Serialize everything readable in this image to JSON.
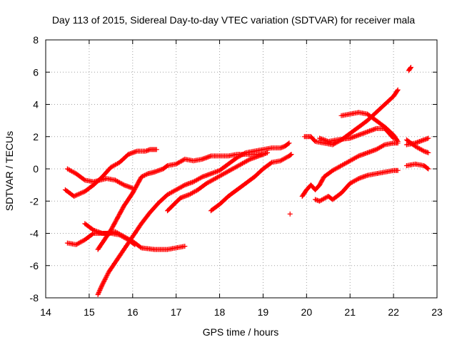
{
  "chart_data": {
    "type": "scatter",
    "title": "Day 113 of 2015, Sidereal Day-to-day VTEC variation (SDTVAR) for receiver mala",
    "xlabel": "GPS time / hours",
    "ylabel": "SDTVAR / TECUs",
    "xlim": [
      14,
      23
    ],
    "ylim": [
      -8,
      8
    ],
    "xticks": [
      14,
      15,
      16,
      17,
      18,
      19,
      20,
      21,
      22,
      23
    ],
    "yticks": [
      -8,
      -6,
      -4,
      -2,
      0,
      2,
      4,
      6,
      8
    ],
    "grid": true,
    "legend": "none",
    "marker": "plus",
    "series_color": "#ff0000",
    "tracks": [
      [
        [
          14.5,
          0.0
        ],
        [
          14.7,
          -0.3
        ],
        [
          14.9,
          -0.7
        ],
        [
          15.1,
          -0.8
        ],
        [
          15.4,
          -0.6
        ],
        [
          15.6,
          -0.7
        ],
        [
          15.8,
          -1.0
        ],
        [
          16.0,
          -1.2
        ]
      ],
      [
        [
          14.45,
          -1.3
        ],
        [
          14.65,
          -1.7
        ],
        [
          14.9,
          -1.4
        ],
        [
          15.1,
          -1.0
        ],
        [
          15.3,
          -0.5
        ],
        [
          15.5,
          0.1
        ],
        [
          15.7,
          0.4
        ],
        [
          15.9,
          0.9
        ],
        [
          16.1,
          1.1
        ],
        [
          16.3,
          1.1
        ],
        [
          16.4,
          1.2
        ],
        [
          16.55,
          1.2
        ]
      ],
      [
        [
          14.5,
          -4.6
        ],
        [
          14.7,
          -4.7
        ],
        [
          14.9,
          -4.4
        ],
        [
          15.1,
          -4.0
        ],
        [
          15.4,
          -4.0
        ],
        [
          15.6,
          -3.9
        ],
        [
          15.8,
          -4.2
        ],
        [
          16.0,
          -4.5
        ],
        [
          16.2,
          -4.9
        ],
        [
          16.5,
          -5.0
        ],
        [
          16.8,
          -5.0
        ],
        [
          17.0,
          -4.9
        ],
        [
          17.2,
          -4.8
        ]
      ],
      [
        [
          14.9,
          -3.4
        ],
        [
          15.1,
          -3.8
        ],
        [
          15.3,
          -4.0
        ],
        [
          15.5,
          -4.0
        ],
        [
          15.7,
          -4.1
        ],
        [
          15.9,
          -4.4
        ],
        [
          16.05,
          -4.7
        ]
      ],
      [
        [
          15.2,
          -7.8
        ],
        [
          15.3,
          -7.2
        ],
        [
          15.45,
          -6.4
        ],
        [
          15.6,
          -5.8
        ],
        [
          15.8,
          -5.0
        ],
        [
          16.0,
          -4.2
        ],
        [
          16.2,
          -3.4
        ],
        [
          16.4,
          -2.7
        ],
        [
          16.6,
          -2.1
        ],
        [
          16.8,
          -1.6
        ],
        [
          17.0,
          -1.3
        ],
        [
          17.2,
          -1.0
        ],
        [
          17.4,
          -0.8
        ],
        [
          17.6,
          -0.5
        ],
        [
          17.8,
          -0.3
        ],
        [
          18.0,
          -0.1
        ],
        [
          18.2,
          0.3
        ],
        [
          18.4,
          0.7
        ],
        [
          18.6,
          1.0
        ],
        [
          18.8,
          1.1
        ],
        [
          19.0,
          1.2
        ],
        [
          19.2,
          1.3
        ],
        [
          19.4,
          1.3
        ],
        [
          19.5,
          1.4
        ],
        [
          19.6,
          1.6
        ]
      ],
      [
        [
          15.2,
          -5.0
        ],
        [
          15.35,
          -4.4
        ],
        [
          15.5,
          -3.8
        ],
        [
          15.6,
          -3.3
        ],
        [
          15.7,
          -2.8
        ],
        [
          15.8,
          -2.3
        ],
        [
          15.9,
          -1.9
        ],
        [
          16.0,
          -1.5
        ],
        [
          16.1,
          -1.0
        ],
        [
          16.2,
          -0.5
        ],
        [
          16.35,
          -0.3
        ],
        [
          16.5,
          -0.2
        ],
        [
          16.7,
          0.0
        ],
        [
          16.8,
          0.2
        ],
        [
          17.0,
          0.3
        ],
        [
          17.2,
          0.6
        ],
        [
          17.4,
          0.5
        ],
        [
          17.6,
          0.6
        ],
        [
          17.8,
          0.8
        ],
        [
          18.0,
          0.8
        ],
        [
          18.2,
          0.8
        ],
        [
          18.4,
          0.9
        ],
        [
          18.6,
          0.9
        ],
        [
          18.8,
          0.9
        ],
        [
          19.0,
          0.9
        ]
      ],
      [
        [
          16.8,
          -2.6
        ],
        [
          16.95,
          -2.2
        ],
        [
          17.1,
          -1.8
        ],
        [
          17.3,
          -1.6
        ],
        [
          17.5,
          -1.3
        ],
        [
          17.7,
          -0.9
        ],
        [
          17.9,
          -0.6
        ],
        [
          18.1,
          -0.3
        ],
        [
          18.3,
          0.0
        ],
        [
          18.5,
          0.3
        ],
        [
          18.7,
          0.6
        ],
        [
          18.9,
          0.8
        ],
        [
          19.1,
          1.0
        ]
      ],
      [
        [
          17.8,
          -2.6
        ],
        [
          18.0,
          -2.2
        ],
        [
          18.2,
          -1.7
        ],
        [
          18.4,
          -1.3
        ],
        [
          18.6,
          -0.9
        ],
        [
          18.8,
          -0.5
        ],
        [
          19.0,
          0.0
        ],
        [
          19.2,
          0.4
        ],
        [
          19.4,
          0.5
        ],
        [
          19.6,
          0.8
        ],
        [
          19.65,
          0.9
        ]
      ],
      [
        [
          19.62,
          -2.8
        ]
      ],
      [
        [
          19.9,
          -1.7
        ],
        [
          20.0,
          -1.3
        ],
        [
          20.1,
          -1.0
        ],
        [
          20.2,
          -1.3
        ],
        [
          20.3,
          -1.0
        ],
        [
          20.4,
          -0.5
        ],
        [
          20.6,
          -0.1
        ],
        [
          20.8,
          0.2
        ],
        [
          21.0,
          0.5
        ],
        [
          21.2,
          0.8
        ],
        [
          21.4,
          1.0
        ],
        [
          21.6,
          1.2
        ],
        [
          21.8,
          1.5
        ],
        [
          22.0,
          1.6
        ],
        [
          22.1,
          1.6
        ]
      ],
      [
        [
          20.2,
          -1.9
        ],
        [
          20.3,
          -2.0
        ],
        [
          20.5,
          -1.7
        ],
        [
          20.6,
          -1.9
        ],
        [
          20.8,
          -1.5
        ],
        [
          21.0,
          -0.9
        ],
        [
          21.2,
          -0.6
        ],
        [
          21.4,
          -0.4
        ],
        [
          21.6,
          -0.3
        ],
        [
          21.8,
          -0.2
        ],
        [
          22.0,
          -0.1
        ],
        [
          22.1,
          -0.1
        ]
      ],
      [
        [
          19.95,
          2.0
        ],
        [
          20.1,
          2.0
        ],
        [
          20.2,
          1.7
        ],
        [
          20.4,
          1.6
        ],
        [
          20.6,
          1.5
        ],
        [
          20.8,
          1.8
        ],
        [
          21.0,
          2.2
        ],
        [
          21.2,
          2.6
        ],
        [
          21.4,
          3.0
        ],
        [
          21.6,
          3.5
        ],
        [
          21.8,
          4.0
        ],
        [
          22.0,
          4.5
        ],
        [
          22.1,
          4.9
        ]
      ],
      [
        [
          20.8,
          3.3
        ],
        [
          21.0,
          3.4
        ],
        [
          21.2,
          3.5
        ],
        [
          21.4,
          3.4
        ],
        [
          21.6,
          3.0
        ],
        [
          21.8,
          2.6
        ],
        [
          22.0,
          2.1
        ],
        [
          22.1,
          1.7
        ]
      ],
      [
        [
          20.3,
          1.9
        ],
        [
          20.5,
          1.7
        ],
        [
          20.7,
          1.8
        ],
        [
          21.0,
          1.9
        ],
        [
          21.2,
          2.1
        ],
        [
          21.4,
          2.3
        ],
        [
          21.6,
          2.5
        ],
        [
          21.8,
          2.5
        ],
        [
          22.0,
          1.9
        ]
      ],
      [
        [
          22.3,
          1.5
        ],
        [
          22.5,
          1.6
        ],
        [
          22.7,
          1.8
        ],
        [
          22.8,
          1.9
        ]
      ],
      [
        [
          22.3,
          1.8
        ],
        [
          22.5,
          1.4
        ],
        [
          22.7,
          1.1
        ],
        [
          22.8,
          1.0
        ]
      ],
      [
        [
          22.3,
          0.2
        ],
        [
          22.5,
          0.3
        ],
        [
          22.7,
          0.2
        ],
        [
          22.8,
          0.0
        ]
      ],
      [
        [
          22.35,
          6.1
        ],
        [
          22.4,
          6.3
        ]
      ]
    ]
  }
}
